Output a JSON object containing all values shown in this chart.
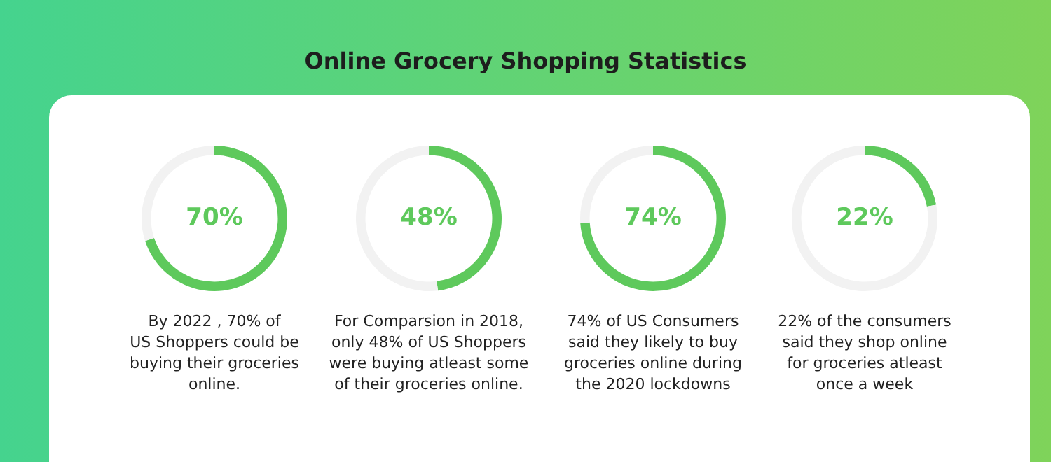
{
  "chart_data": [
    {
      "type": "donut",
      "title": "Online Grocery Shopping Statistics",
      "categories": [
        null,
        null
      ],
      "values": [
        70,
        30
      ],
      "colors": [
        "#5ec95c",
        "#f2f2f2"
      ],
      "value_labels": [
        "70%",
        null
      ],
      "annotations": [
        "By 2022 , 70% of\nUS Shoppers could be\nbuying their groceries\nonline."
      ]
    },
    {
      "type": "donut",
      "categories": [
        null,
        null
      ],
      "values": [
        48,
        52
      ],
      "colors": [
        "#5ec95c",
        "#f2f2f2"
      ],
      "value_labels": [
        "48%",
        null
      ],
      "annotations": [
        "For Comparsion in 2018,\nonly 48% of US Shoppers\nwere buying atleast some\nof their groceries online."
      ]
    },
    {
      "type": "donut",
      "categories": [
        null,
        null
      ],
      "values": [
        74,
        26
      ],
      "colors": [
        "#5ec95c",
        "#f2f2f2"
      ],
      "value_labels": [
        "74%",
        null
      ],
      "annotations": [
        "74% of US Consumers\nsaid they likely to buy\ngroceries online during\nthe 2020 lockdowns"
      ]
    },
    {
      "type": "donut",
      "categories": [
        null,
        null
      ],
      "values": [
        22,
        78
      ],
      "colors": [
        "#5ec95c",
        "#f2f2f2"
      ],
      "value_labels": [
        "22%",
        null
      ],
      "annotations": [
        "22% of the consumers\nsaid they shop online\nfor groceries atleast\nonce a week"
      ]
    }
  ]
}
